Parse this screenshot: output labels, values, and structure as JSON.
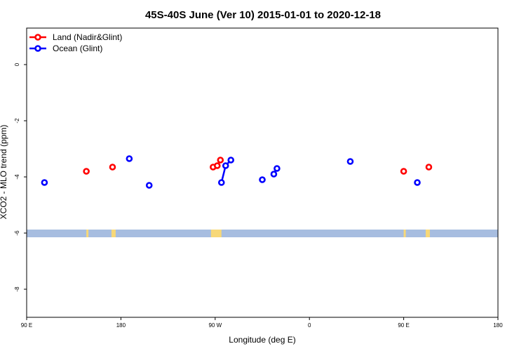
{
  "chart_data": {
    "type": "scatter",
    "title": "45S-40S June (Ver 10)   2015-01-01 to 2020-12-18",
    "xlabel": "Longitude (deg E)",
    "ylabel": "XCO2 - MLO trend (ppm)",
    "xlim": [
      90,
      540
    ],
    "ylim": [
      -9.0,
      1.3
    ],
    "x_unit_note": "continuous longitude axis from 90E eastward through 180, 90W, 0, 90E to 180",
    "x_ticks": [
      {
        "value": 90,
        "label": "90 E"
      },
      {
        "value": 180,
        "label": "180"
      },
      {
        "value": 270,
        "label": "90 W"
      },
      {
        "value": 360,
        "label": "0"
      },
      {
        "value": 450,
        "label": "90 E"
      },
      {
        "value": 540,
        "label": "180"
      }
    ],
    "y_ticks": [
      {
        "value": 0,
        "label": "0"
      },
      {
        "value": -2,
        "label": "-2"
      },
      {
        "value": -4,
        "label": "-4"
      },
      {
        "value": -6,
        "label": "-6"
      },
      {
        "value": -8,
        "label": "-8"
      }
    ],
    "legend": {
      "position": "top-left",
      "entries": [
        {
          "label": "Land (Nadir&Glint)",
          "color": "#ff0000"
        },
        {
          "label": "Ocean (Glint)",
          "color": "#0000ff"
        }
      ]
    },
    "series": [
      {
        "name": "Land (Nadir&Glint)",
        "color": "#ff0000",
        "points": [
          {
            "x": 147,
            "y": -3.8
          },
          {
            "x": 172,
            "y": -3.65
          },
          {
            "x": 268,
            "y": -3.65
          },
          {
            "x": 272,
            "y": -3.6
          },
          {
            "x": 275,
            "y": -3.4
          },
          {
            "x": 450,
            "y": -3.8
          },
          {
            "x": 474,
            "y": -3.65
          }
        ],
        "segments": [
          [
            [
              268,
              -3.65
            ],
            [
              272,
              -3.6
            ],
            [
              275,
              -3.4
            ]
          ]
        ]
      },
      {
        "name": "Ocean (Glint)",
        "color": "#0000ff",
        "points": [
          {
            "x": 107,
            "y": -4.2
          },
          {
            "x": 188,
            "y": -3.35
          },
          {
            "x": 207,
            "y": -4.3
          },
          {
            "x": 276,
            "y": -4.2
          },
          {
            "x": 280,
            "y": -3.6
          },
          {
            "x": 285,
            "y": -3.4
          },
          {
            "x": 315,
            "y": -4.1
          },
          {
            "x": 326,
            "y": -3.9
          },
          {
            "x": 329,
            "y": -3.7
          },
          {
            "x": 399,
            "y": -3.45
          },
          {
            "x": 463,
            "y": -4.2
          }
        ],
        "segments": [
          [
            [
              276,
              -4.2
            ],
            [
              280,
              -3.6
            ],
            [
              285,
              -3.4
            ]
          ],
          [
            [
              326,
              -3.9
            ],
            [
              329,
              -3.7
            ]
          ]
        ]
      }
    ],
    "band": {
      "y": -6.0,
      "ocean_color": "#a7bde0",
      "land_color": "#f7d878",
      "land_spans": [
        [
          147,
          149
        ],
        [
          171,
          175
        ],
        [
          266,
          276
        ],
        [
          450,
          452
        ],
        [
          471,
          475
        ]
      ]
    }
  }
}
